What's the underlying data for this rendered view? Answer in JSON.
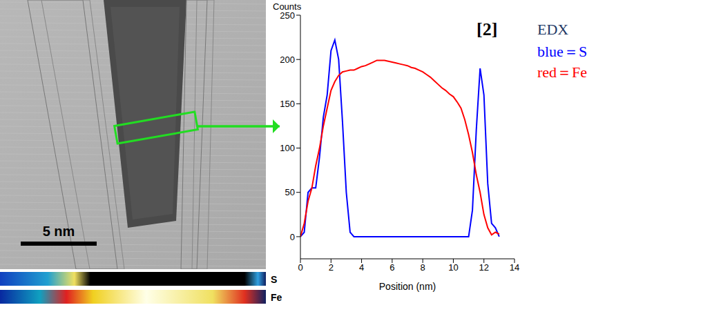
{
  "chart_data": {
    "type": "line",
    "y_label": "Counts",
    "x_label": "Position (nm)",
    "annotations": [
      "[2]",
      "EDX",
      "blue＝S",
      "red＝Fe"
    ],
    "x": [
      0,
      0.25,
      0.5,
      0.75,
      1,
      1.25,
      1.5,
      1.75,
      2,
      2.25,
      2.5,
      2.75,
      3,
      3.25,
      3.5,
      3.75,
      4,
      4.25,
      4.5,
      4.75,
      5,
      5.25,
      5.5,
      5.75,
      6,
      6.25,
      6.5,
      6.75,
      7,
      7.25,
      7.5,
      7.75,
      8,
      8.25,
      8.5,
      8.75,
      9,
      9.25,
      9.5,
      9.75,
      10,
      10.25,
      10.5,
      10.75,
      11,
      11.25,
      11.5,
      11.75,
      12,
      12.25,
      12.5,
      12.75,
      13
    ],
    "series": [
      {
        "name": "S",
        "color": "#0000ff",
        "values": [
          0,
          5,
          50,
          55,
          55,
          90,
          135,
          160,
          210,
          222,
          200,
          130,
          50,
          5,
          0,
          0,
          0,
          0,
          0,
          0,
          0,
          0,
          0,
          0,
          0,
          0,
          0,
          0,
          0,
          0,
          0,
          0,
          0,
          0,
          0,
          0,
          0,
          0,
          0,
          0,
          0,
          0,
          0,
          0,
          0,
          30,
          120,
          190,
          160,
          60,
          15,
          10,
          0
        ]
      },
      {
        "name": "Fe",
        "color": "#ff0000",
        "values": [
          0,
          15,
          40,
          55,
          80,
          100,
          125,
          145,
          165,
          175,
          182,
          186,
          187,
          188,
          188,
          190,
          192,
          193,
          195,
          197,
          199,
          199,
          199,
          198,
          197,
          196,
          195,
          194,
          193,
          191,
          190,
          188,
          186,
          183,
          180,
          176,
          172,
          168,
          165,
          161,
          158,
          152,
          145,
          132,
          115,
          95,
          70,
          50,
          25,
          10,
          2,
          5,
          3
        ]
      }
    ],
    "xlim": [
      0,
      14
    ],
    "xticks": [
      0,
      2,
      4,
      6,
      8,
      10,
      12,
      14
    ],
    "ylim": [
      -25,
      250
    ],
    "yticks": [
      0,
      50,
      100,
      150,
      200,
      250
    ],
    "grid": false
  },
  "image": {
    "scale_bar": "5 nm",
    "maps": [
      "S",
      "Fe"
    ]
  }
}
